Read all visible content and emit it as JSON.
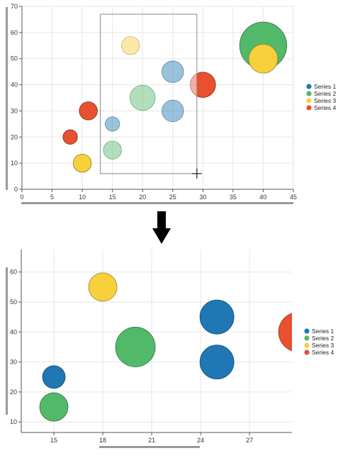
{
  "colors": {
    "series1": "#1f77b4",
    "series2": "#52b96b",
    "series3": "#f7d03c",
    "series4": "#e8502f",
    "grid": "#e6e6e6",
    "axis": "#555555",
    "scrollbar": "#999999",
    "arrow": "#000000"
  },
  "legend": {
    "placement": "right",
    "items": [
      {
        "label": "Series 1",
        "color": "#1f77b4"
      },
      {
        "label": "Series 2",
        "color": "#52b96b"
      },
      {
        "label": "Series 3",
        "color": "#f7d03c"
      },
      {
        "label": "Series 4",
        "color": "#e8502f"
      }
    ]
  },
  "icons": {
    "arrow": "arrow-down-icon",
    "crosshair": "crosshair-icon"
  },
  "chart_data": [
    {
      "type": "scatter",
      "variant": "bubble",
      "title": "",
      "xlabel": "",
      "ylabel": "",
      "xlim": [
        0,
        45
      ],
      "ylim": [
        0,
        70
      ],
      "xticks": [
        "0",
        "5",
        "10",
        "15",
        "20",
        "25",
        "30",
        "35",
        "40",
        "45"
      ],
      "yticks": [
        "0",
        "10",
        "20",
        "30",
        "40",
        "50",
        "60",
        "70"
      ],
      "grid": true,
      "legend_placement": "right",
      "selection": {
        "x": [
          13,
          29
        ],
        "y": [
          6,
          67
        ]
      },
      "series": [
        {
          "name": "Series 1",
          "points": [
            {
              "x": 15,
              "y": 25,
              "size": 4
            },
            {
              "x": 25,
              "y": 30,
              "size": 6
            },
            {
              "x": 25,
              "y": 45,
              "size": 6
            }
          ]
        },
        {
          "name": "Series 2",
          "points": [
            {
              "x": 15,
              "y": 15,
              "size": 5
            },
            {
              "x": 20,
              "y": 35,
              "size": 7
            },
            {
              "x": 40,
              "y": 55,
              "size": 13
            }
          ]
        },
        {
          "name": "Series 3",
          "points": [
            {
              "x": 10,
              "y": 10,
              "size": 5
            },
            {
              "x": 18,
              "y": 55,
              "size": 5
            },
            {
              "x": 40,
              "y": 50,
              "size": 8
            }
          ]
        },
        {
          "name": "Series 4",
          "points": [
            {
              "x": 8,
              "y": 20,
              "size": 4
            },
            {
              "x": 11,
              "y": 30,
              "size": 5
            },
            {
              "x": 30,
              "y": 40,
              "size": 7
            }
          ]
        }
      ]
    },
    {
      "type": "scatter",
      "variant": "bubble",
      "title": "",
      "xlabel": "",
      "ylabel": "",
      "xlim": [
        13,
        29.6
      ],
      "ylim": [
        6.5,
        67.5
      ],
      "xticks": [
        "15",
        "18",
        "21",
        "24",
        "27"
      ],
      "yticks": [
        "10",
        "20",
        "30",
        "40",
        "50",
        "60"
      ],
      "grid": true,
      "legend_placement": "right",
      "series": [
        {
          "name": "Series 1",
          "points": [
            {
              "x": 15,
              "y": 25,
              "size": 4
            },
            {
              "x": 25,
              "y": 30,
              "size": 6
            },
            {
              "x": 25,
              "y": 45,
              "size": 6
            }
          ]
        },
        {
          "name": "Series 2",
          "points": [
            {
              "x": 15,
              "y": 15,
              "size": 5
            },
            {
              "x": 20,
              "y": 35,
              "size": 7
            }
          ]
        },
        {
          "name": "Series 3",
          "points": [
            {
              "x": 18,
              "y": 55,
              "size": 5
            }
          ]
        },
        {
          "name": "Series 4",
          "points": [
            {
              "x": 30,
              "y": 40,
              "size": 7
            }
          ]
        }
      ]
    }
  ]
}
